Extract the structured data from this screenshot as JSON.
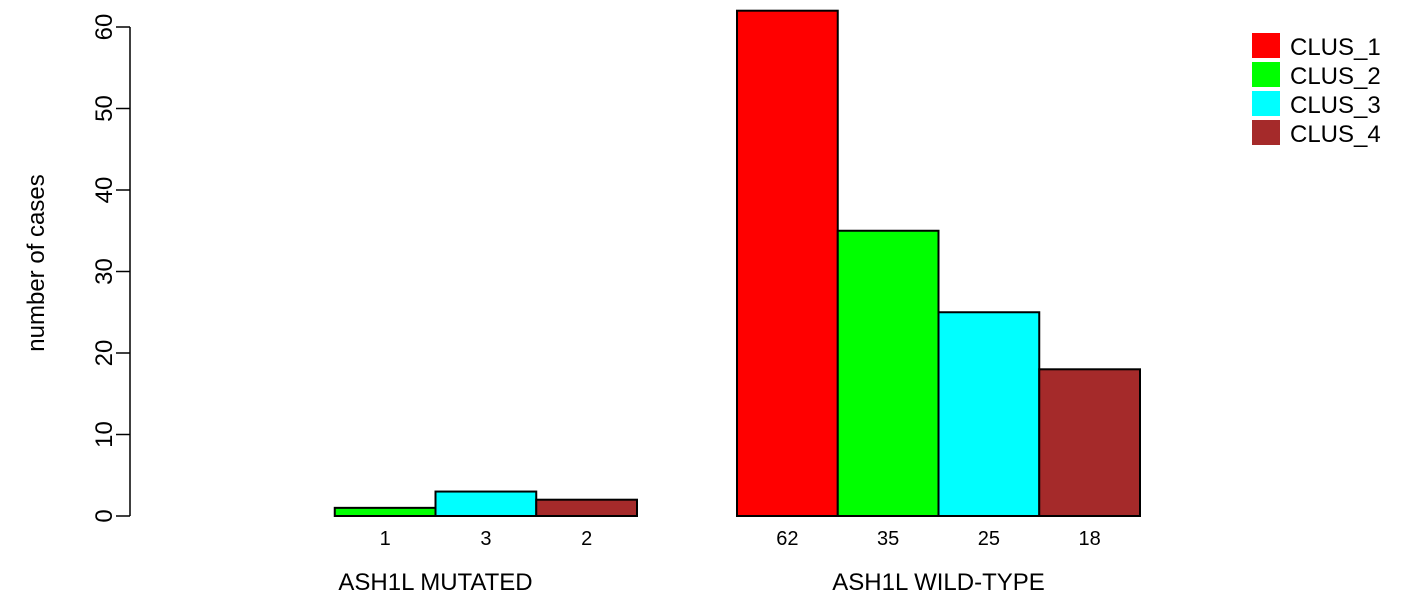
{
  "chart_data": {
    "type": "bar",
    "ylabel": "number of cases",
    "ylim": [
      0,
      62
    ],
    "yticks": [
      0,
      10,
      20,
      30,
      40,
      50,
      60
    ],
    "groups": [
      {
        "label": "ASH1L MUTATED",
        "values": [
          0,
          1,
          3,
          2
        ],
        "data_labels": [
          "",
          "1",
          "3",
          "2"
        ]
      },
      {
        "label": "ASH1L WILD-TYPE",
        "values": [
          62,
          35,
          25,
          18
        ],
        "data_labels": [
          "62",
          "35",
          "25",
          "18"
        ]
      }
    ],
    "series": [
      {
        "name": "CLUS_1",
        "color": "#ff0000"
      },
      {
        "name": "CLUS_2",
        "color": "#00ff00"
      },
      {
        "name": "CLUS_3",
        "color": "#00ffff"
      },
      {
        "name": "CLUS_4",
        "color": "#a52a2a"
      }
    ],
    "legend_position": "top-right"
  }
}
